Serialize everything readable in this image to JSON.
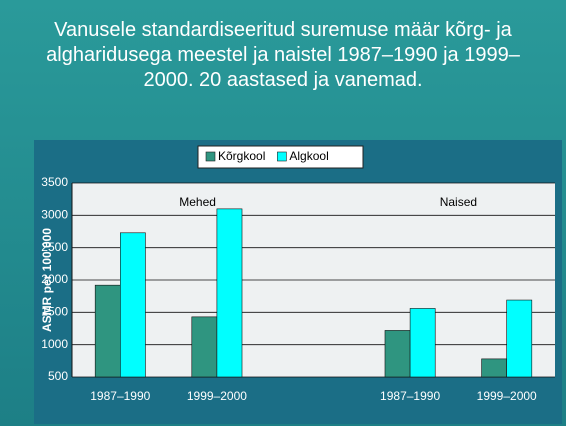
{
  "chart_data": {
    "type": "bar",
    "title": "Vanusele standardiseeritud suremuse määr kõrg- ja algharidusega meestel ja naistel 1987–1990 ja 1999–2000.  20 aastased ja vanemad.",
    "y_label": "ASMR per 100 000",
    "annotations": [
      "Mehed",
      "Naised"
    ],
    "categories": [
      "1987–1990",
      "1999–2000",
      null,
      "1987–1990",
      "1999–2000"
    ],
    "series": [
      {
        "name": "Kõrgkool",
        "color": "#2f9580",
        "values": [
          1920,
          1430,
          null,
          1220,
          780
        ]
      },
      {
        "name": "Algkool",
        "color": "#00ffff",
        "values": [
          2730,
          3100,
          null,
          1560,
          1690
        ]
      }
    ],
    "ylim": [
      500,
      3500
    ],
    "yticks": [
      500,
      1000,
      1500,
      2000,
      2500,
      3000,
      3500
    ],
    "grid": true,
    "legend": "top"
  }
}
